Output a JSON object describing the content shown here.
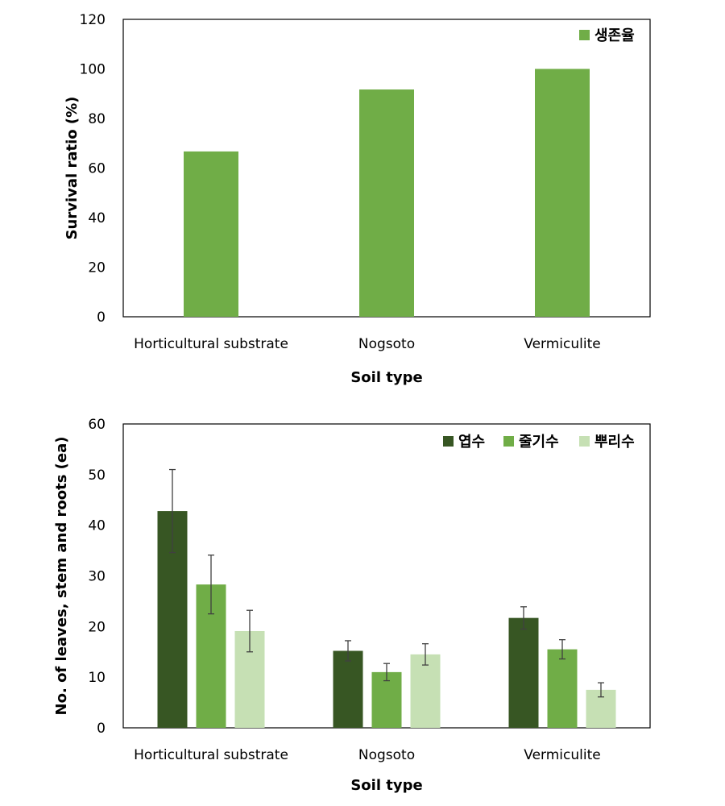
{
  "chart_data": [
    {
      "type": "bar",
      "categories": [
        "Horticultural substrate",
        "Nogsoto",
        "Vermiculite"
      ],
      "series": [
        {
          "name": "생존율",
          "color": "#70ad47",
          "values": [
            66.7,
            91.7,
            100
          ]
        }
      ],
      "xlabel": "Soil type",
      "ylabel": "Survival ratio (%)",
      "ylim": [
        0,
        120
      ],
      "yticks": [
        0,
        20,
        40,
        60,
        80,
        100,
        120
      ],
      "grid": false,
      "legend_position": "top-right"
    },
    {
      "type": "bar",
      "categories": [
        "Horticultural substrate",
        "Nogsoto",
        "Vermiculite"
      ],
      "series": [
        {
          "name": "엽수",
          "color": "#375623",
          "values": [
            42.8,
            15.2,
            21.7
          ],
          "errors": [
            8.2,
            2.0,
            2.2
          ]
        },
        {
          "name": "줄기수",
          "color": "#70ad47",
          "values": [
            28.3,
            11.0,
            15.5
          ],
          "errors": [
            5.8,
            1.7,
            1.9
          ]
        },
        {
          "name": "뿌리수",
          "color": "#c6e0b4",
          "values": [
            19.1,
            14.5,
            7.5
          ],
          "errors": [
            4.1,
            2.1,
            1.4
          ]
        }
      ],
      "xlabel": "Soil type",
      "ylabel": "No. of leaves, stem and roots (ea)",
      "ylim": [
        0,
        60
      ],
      "yticks": [
        0,
        10,
        20,
        30,
        40,
        50,
        60
      ],
      "grid": false,
      "legend_position": "top-right"
    }
  ]
}
